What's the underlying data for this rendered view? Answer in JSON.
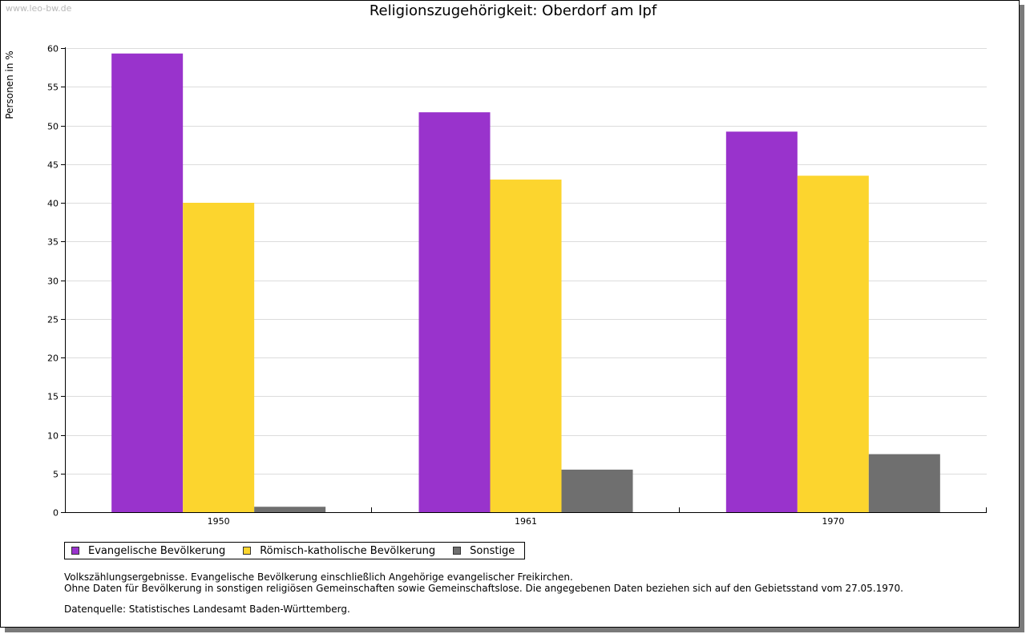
{
  "watermark": "www.leo-bw.de",
  "chart_data": {
    "type": "bar",
    "title": "Religionszugehörigkeit: Oberdorf am Ipf",
    "ylabel": "Personen in %",
    "xlabel": "",
    "categories": [
      "1950",
      "1961",
      "1970"
    ],
    "ylim": [
      0,
      60
    ],
    "yticks": [
      0,
      5,
      10,
      15,
      20,
      25,
      30,
      35,
      40,
      45,
      50,
      55,
      60
    ],
    "grid": true,
    "legend_position": "bottom-left",
    "series": [
      {
        "name": "Evangelische Bevölkerung",
        "color": "#9933cc",
        "values": [
          59.3,
          51.7,
          49.2
        ]
      },
      {
        "name": "Römisch-katholische Bevölkerung",
        "color": "#fcd52e",
        "values": [
          40.0,
          43.0,
          43.5
        ]
      },
      {
        "name": "Sonstige",
        "color": "#6f6f6f",
        "values": [
          0.7,
          5.5,
          7.5
        ]
      }
    ]
  },
  "notes": {
    "line1": "Volkszählungsergebnisse. Evangelische Bevölkerung einschließlich Angehörige evangelischer Freikirchen.",
    "line2": "Ohne Daten für Bevölkerung in sonstigen religiösen Gemeinschaften sowie Gemeinschaftslose. Die angegebenen Daten beziehen sich auf den Gebietsstand vom 27.05.1970.",
    "source": "Datenquelle: Statistisches Landesamt Baden-Württemberg."
  }
}
